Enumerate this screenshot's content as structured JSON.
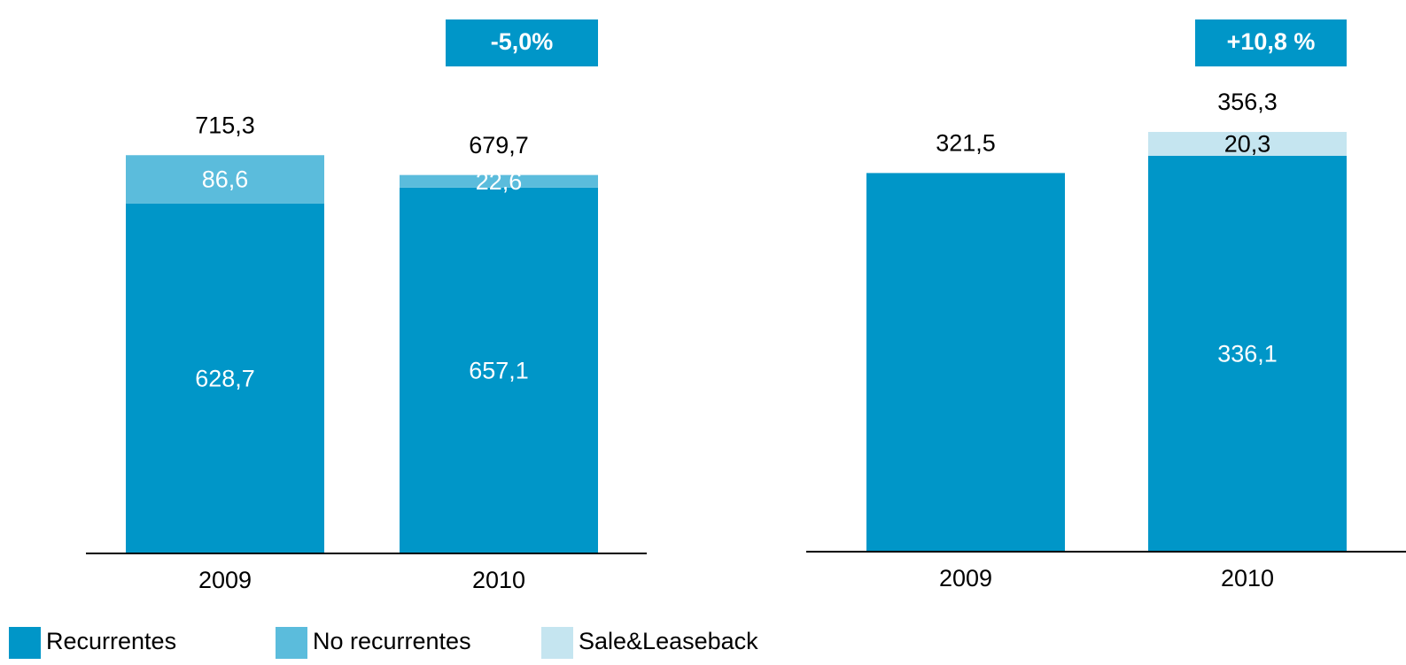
{
  "chart_data": [
    {
      "type": "stacked_bar",
      "annotation": "-5,0%",
      "categories": [
        "2009",
        "2010"
      ],
      "ylim": [
        0,
        800
      ],
      "series": [
        {
          "name": "Recurrentes",
          "color": "#0096c8",
          "label_color": "#ffffff",
          "values": [
            628.7,
            657.1
          ],
          "value_labels": [
            "628,7",
            "657,1"
          ]
        },
        {
          "name": "No recurrentes",
          "color": "#5bbcdc",
          "label_color": "#ffffff",
          "values": [
            86.6,
            22.6
          ],
          "value_labels": [
            "86,6",
            "22,6"
          ]
        }
      ],
      "totals": [
        715.3,
        679.7
      ],
      "total_labels": [
        "715,3",
        "679,7"
      ]
    },
    {
      "type": "stacked_bar",
      "annotation": "+10,8 %",
      "categories": [
        "2009",
        "2010"
      ],
      "ylim": [
        0,
        400
      ],
      "series": [
        {
          "color": "#0096c8",
          "label_color": "#ffffff",
          "values": [
            321.5,
            336.1
          ],
          "value_labels": [
            null,
            "336,1"
          ]
        },
        {
          "name": "Sale&Leaseback",
          "color": "#c5e5f0",
          "label_color": "#000000",
          "values": [
            null,
            20.3
          ],
          "value_labels": [
            null,
            "20,3"
          ]
        }
      ],
      "totals": [
        321.5,
        356.3
      ],
      "total_labels": [
        "321,5",
        "356,3"
      ]
    }
  ]
}
